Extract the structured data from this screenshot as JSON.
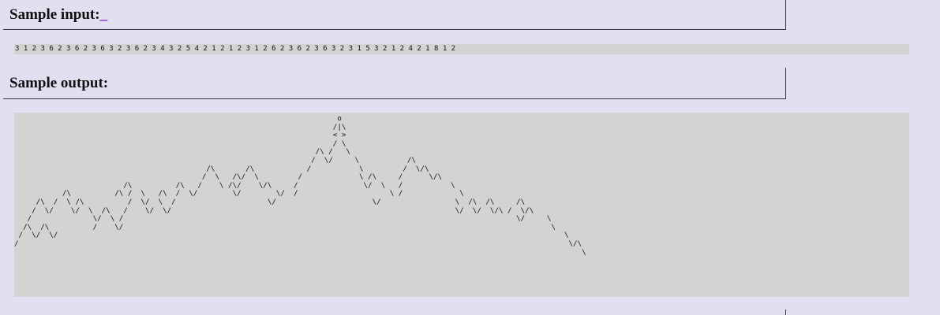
{
  "input_heading": "Sample input:",
  "input_cursor": "_",
  "input_text": "3 1 2 3 6 2 3 6 2 3 6 3 2 3 6 2 3 4 3 2 5 4 2 1 2 1 2 3 1 2 6 2 3 6 2 3 6 3 2 3 1 5 3 2 1 2 4 2 1 8 1 2",
  "output_heading": "Sample output:",
  "output_text": "                                                                          o\n                                                                         /|\\\n                                                                         < >\n                                                                         / \\\n                                                                     /\\ /   \\                \n                                                                    /  \\/     \\           /\\  \n                                            /\\       /\\            /           \\         /  \\/\\\n                                           /  \\   /\\/  \\         /             \\ /\\     /      \\/\\ \n                         /\\          /\\   /    \\ /\\/    \\/\\     /               \\/  \\   /           \\\n           /\\          /\\ /  \\   /\\  /  \\/        \\/        \\/  /                     \\ /             \\   \n     /\\  /  \\ /\\          /  \\/  \\  /                     \\/                      \\/                 \\  /\\  /\\     /\\ \n    /  \\/    \\/  \\  /\\   /    \\/  \\/                                                                 \\/  \\/  \\/\\ /  \\/\\\n   /              \\/  \\ /                                                                                          \\/     \\\n  /\\  /\\          /    \\/                                                                                                  \\\n /  \\/  \\/                                                                                                                    \\\n/                                                                                                                              \\/\\\n                                                                                                                                  \\"
}
